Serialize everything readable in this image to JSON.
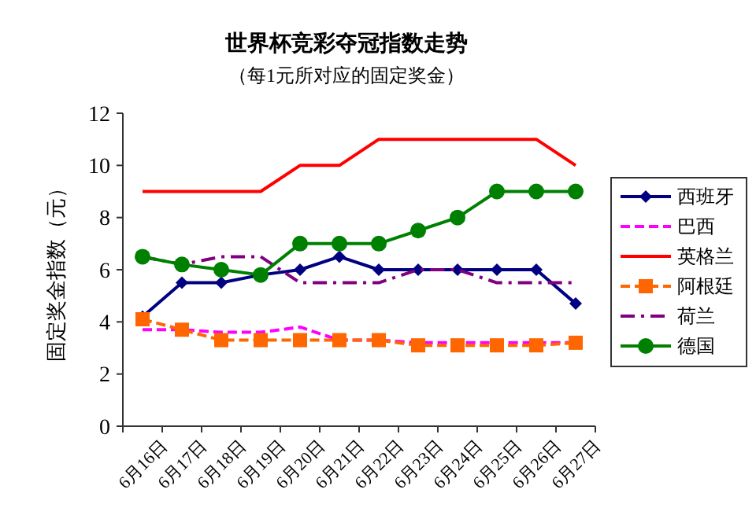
{
  "chart_data": {
    "type": "line",
    "title": "世界杯竞彩夺冠指数走势",
    "subtitle": "（每1元所对应的固定奖金）",
    "ylabel": "固定奖金指数（元）",
    "categories": [
      "6月16日",
      "6月17日",
      "6月18日",
      "6月19日",
      "6月20日",
      "6月21日",
      "6月22日",
      "6月23日",
      "6月24日",
      "6月25日",
      "6月26日",
      "6月27日"
    ],
    "ylim": [
      0,
      12
    ],
    "yticks": [
      0,
      2,
      4,
      6,
      8,
      10,
      12
    ],
    "grid": false,
    "legend": "right",
    "series": [
      {
        "name": "西班牙",
        "color": "#000080",
        "marker": "diamond",
        "line_style": "solid",
        "values": [
          4.2,
          5.5,
          5.5,
          5.8,
          6,
          6.5,
          6,
          6,
          6,
          6,
          6,
          4.7
        ]
      },
      {
        "name": "巴西",
        "color": "#ff00ff",
        "marker": "none",
        "line_style": "dashed",
        "values": [
          3.7,
          3.7,
          3.6,
          3.6,
          3.8,
          3.3,
          3.3,
          3.2,
          3.2,
          3.2,
          3.2,
          3.2
        ]
      },
      {
        "name": "英格兰",
        "color": "#ff0000",
        "marker": "none",
        "line_style": "solid",
        "values": [
          9,
          9,
          9,
          9,
          10,
          10,
          11,
          11,
          11,
          11,
          11,
          10
        ]
      },
      {
        "name": "阿根廷",
        "color": "#ff6600",
        "marker": "square",
        "line_style": "dashed",
        "values": [
          4.1,
          3.7,
          3.3,
          3.3,
          3.3,
          3.3,
          3.3,
          3.1,
          3.1,
          3.1,
          3.1,
          3.2
        ]
      },
      {
        "name": "荷兰",
        "color": "#800080",
        "marker": "none",
        "line_style": "dashdot",
        "values": [
          6.5,
          6.2,
          6.5,
          6.5,
          5.5,
          5.5,
          5.5,
          6,
          6,
          5.5,
          5.5,
          5.5
        ]
      },
      {
        "name": "德国",
        "color": "#008000",
        "marker": "circle",
        "line_style": "solid",
        "values": [
          6.5,
          6.2,
          6,
          5.8,
          7,
          7,
          7,
          7.5,
          8,
          9,
          9,
          9
        ]
      }
    ]
  }
}
